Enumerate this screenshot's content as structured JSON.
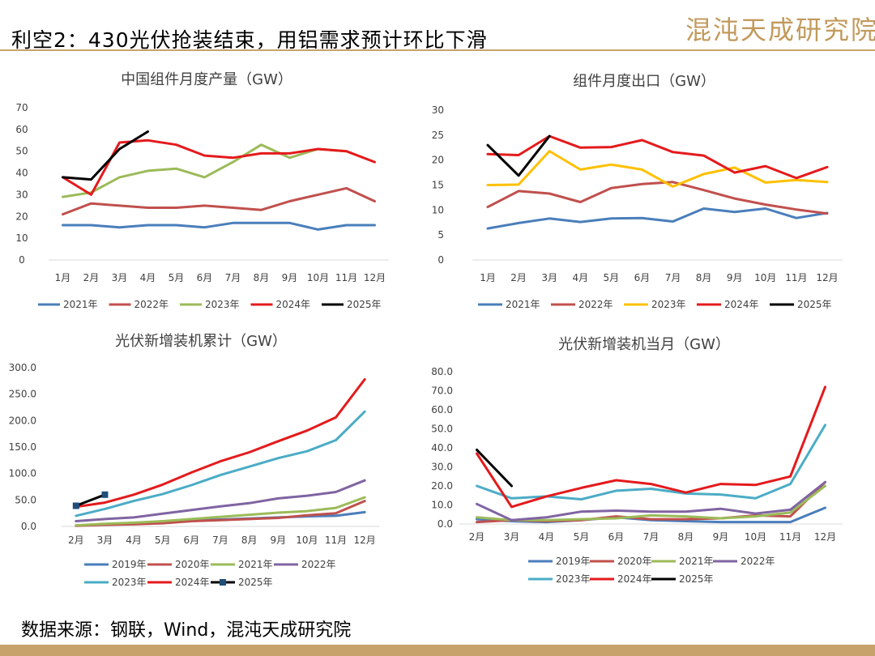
{
  "header": {
    "title": "利空2：430光伏抢装结束，用铝需求预计环比下滑",
    "logo_text": "混沌天成研究院"
  },
  "footer": {
    "source": "数据来源：钢联，Wind，混沌天成研究院"
  },
  "chart_data": [
    {
      "type": "line",
      "title": "中国组件月度产量（GW）",
      "categories": [
        "1月",
        "2月",
        "3月",
        "4月",
        "5月",
        "6月",
        "7月",
        "8月",
        "9月",
        "10月",
        "11月",
        "12月"
      ],
      "y_ticks": [
        "0",
        "10",
        "20",
        "30",
        "40",
        "50",
        "60",
        "70"
      ],
      "ylim": [
        0,
        70
      ],
      "legend_position": "bottom",
      "series": [
        {
          "name": "2021年",
          "color": "#4a7ebb",
          "values": [
            16,
            16,
            15,
            16,
            16,
            15,
            17,
            17,
            17,
            14,
            16,
            16
          ]
        },
        {
          "name": "2022年",
          "color": "#c0504d",
          "values": [
            21,
            26,
            25,
            24,
            24,
            25,
            24,
            23,
            27,
            30,
            33,
            27
          ]
        },
        {
          "name": "2023年",
          "color": "#9bbb59",
          "values": [
            29,
            31,
            38,
            41,
            42,
            38,
            45,
            53,
            47,
            51,
            50,
            null
          ]
        },
        {
          "name": "2024年",
          "color": "#e41a1c",
          "values": [
            38,
            30,
            54,
            55,
            53,
            48,
            47,
            49,
            49,
            51,
            50,
            45
          ]
        },
        {
          "name": "2025年",
          "color": "#000000",
          "values": [
            38,
            37,
            51,
            59,
            null,
            null,
            null,
            null,
            null,
            null,
            null,
            null
          ]
        }
      ]
    },
    {
      "type": "line",
      "title": "组件月度出口（GW）",
      "categories": [
        "1月",
        "2月",
        "3月",
        "4月",
        "5月",
        "6月",
        "7月",
        "8月",
        "9月",
        "10月",
        "11月",
        "12月"
      ],
      "y_ticks": [
        "0",
        "5",
        "10",
        "15",
        "20",
        "25",
        "30"
      ],
      "ylim": [
        0,
        30
      ],
      "legend_position": "bottom",
      "series": [
        {
          "name": "2021年",
          "color": "#4a7ebb",
          "values": [
            6.3,
            7.4,
            8.3,
            7.6,
            8.3,
            8.4,
            7.7,
            10.3,
            9.6,
            10.3,
            8.4,
            9.4
          ]
        },
        {
          "name": "2022年",
          "color": "#c0504d",
          "values": [
            10.6,
            13.8,
            13.3,
            11.6,
            14.4,
            15.2,
            15.6,
            14.0,
            12.3,
            11.1,
            10.1,
            9.3
          ]
        },
        {
          "name": "2023年",
          "color": "#ffc000",
          "values": [
            15.0,
            15.1,
            21.8,
            18.1,
            19.1,
            18.1,
            14.7,
            17.2,
            18.5,
            15.5,
            16.0,
            15.6
          ]
        },
        {
          "name": "2024年",
          "color": "#e41a1c",
          "values": [
            21.2,
            21.0,
            24.8,
            22.5,
            22.6,
            24.0,
            21.6,
            20.9,
            17.5,
            18.8,
            16.4,
            18.6
          ]
        },
        {
          "name": "2025年",
          "color": "#000000",
          "values": [
            23.0,
            16.9,
            24.8,
            null,
            null,
            null,
            null,
            null,
            null,
            null,
            null,
            null
          ]
        }
      ]
    },
    {
      "type": "line",
      "title": "光伏新增装机累计（GW）",
      "categories": [
        "2月",
        "3月",
        "4月",
        "5月",
        "6月",
        "7月",
        "8月",
        "9月",
        "10月",
        "11月",
        "12月"
      ],
      "y_ticks": [
        "0.0",
        "50.0",
        "100.0",
        "150.0",
        "200.0",
        "250.0",
        "300.0"
      ],
      "ylim": [
        0,
        300
      ],
      "legend_position": "bottom",
      "series": [
        {
          "name": "2019年",
          "color": "#4a7ebb",
          "values": [
            2,
            4,
            5,
            7,
            11,
            13,
            15,
            17,
            19,
            20,
            27
          ]
        },
        {
          "name": "2020年",
          "color": "#c0504d",
          "values": [
            1,
            3,
            4,
            6,
            10,
            12,
            14,
            16,
            21,
            25,
            48
          ]
        },
        {
          "name": "2021年",
          "color": "#9bbb59",
          "values": [
            2,
            5,
            7,
            10,
            14,
            18,
            22,
            26,
            29,
            35,
            55
          ]
        },
        {
          "name": "2022年",
          "color": "#8064a2",
          "values": [
            10,
            14,
            17,
            24,
            31,
            38,
            44,
            53,
            58,
            65,
            87
          ]
        },
        {
          "name": "2023年",
          "color": "#4bacc6",
          "values": [
            20,
            33,
            48,
            61,
            78,
            97,
            113,
            129,
            142,
            163,
            217
          ]
        },
        {
          "name": "2024年",
          "color": "#e41a1c",
          "values": [
            37,
            45,
            60,
            79,
            102,
            123,
            140,
            161,
            181,
            206,
            278
          ]
        },
        {
          "name": "2025年",
          "color": "#000000",
          "values": [
            39,
            60,
            null,
            null,
            null,
            null,
            null,
            null,
            null,
            null,
            null
          ]
        }
      ]
    },
    {
      "type": "line",
      "title": "光伏新增装机当月（GW）",
      "categories": [
        "2月",
        "3月",
        "4月",
        "5月",
        "6月",
        "7月",
        "8月",
        "9月",
        "10月",
        "11月",
        "12月"
      ],
      "y_ticks": [
        "0.0",
        "10.0",
        "20.0",
        "30.0",
        "40.0",
        "50.0",
        "60.0",
        "70.0",
        "80.0"
      ],
      "ylim": [
        0,
        80
      ],
      "legend_position": "bottom",
      "series": [
        {
          "name": "2019年",
          "color": "#4a7ebb",
          "values": [
            2.5,
            1.5,
            1.0,
            2.0,
            3.5,
            2.0,
            1.5,
            1.0,
            1.0,
            1.0,
            8.5
          ]
        },
        {
          "name": "2020年",
          "color": "#c0504d",
          "values": [
            1.0,
            2.0,
            1.5,
            2.0,
            4.0,
            2.5,
            2.5,
            3.0,
            4.5,
            4.0,
            22.0
          ]
        },
        {
          "name": "2021年",
          "color": "#9bbb59",
          "values": [
            3.5,
            2.0,
            2.0,
            2.5,
            3.0,
            4.5,
            4.0,
            3.0,
            4.0,
            6.0,
            20.0
          ]
        },
        {
          "name": "2022年",
          "color": "#8064a2",
          "values": [
            10.5,
            2.0,
            3.5,
            6.5,
            7.0,
            6.5,
            6.5,
            8.0,
            5.5,
            7.5,
            22.0
          ]
        },
        {
          "name": "2023年",
          "color": "#4bacc6",
          "values": [
            20.0,
            13.5,
            14.5,
            13.0,
            17.5,
            18.5,
            16.0,
            15.5,
            13.5,
            21.0,
            52.0
          ]
        },
        {
          "name": "2024年",
          "color": "#e41a1c",
          "values": [
            37.0,
            9.0,
            14.5,
            19.0,
            23.0,
            21.0,
            16.5,
            21.0,
            20.5,
            25.0,
            72.0
          ]
        },
        {
          "name": "2025年",
          "color": "#000000",
          "values": [
            39.0,
            20.0,
            null,
            null,
            null,
            null,
            null,
            null,
            null,
            null,
            null
          ]
        }
      ]
    }
  ]
}
